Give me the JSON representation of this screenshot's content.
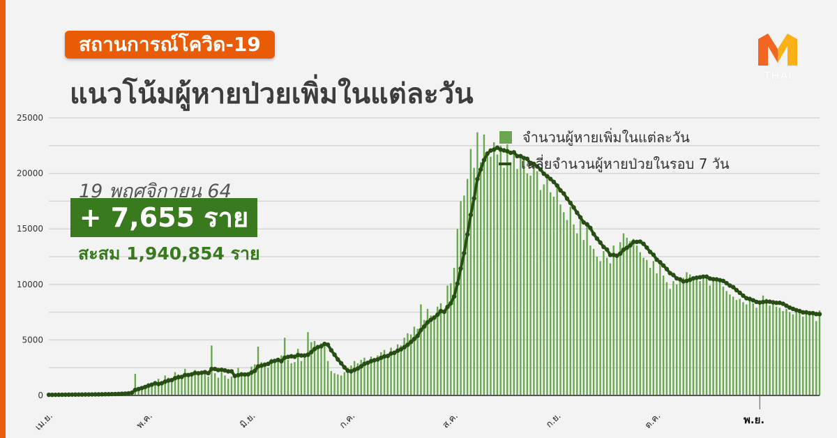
{
  "header": {
    "badge": "สถานการณ์โควิด-19",
    "title": "แนวโน้มผู้หายป่วยเพิ่มในแต่ละวัน"
  },
  "highlight": {
    "date": "19 พฤศจิกายน 64",
    "today": "+ 7,655 ราย",
    "cumulative": "สะสม 1,940,854 ราย"
  },
  "logo": {
    "text": "THAI",
    "letter": "M"
  },
  "colors": {
    "bar": "#6aa84f",
    "line": "#274e13",
    "accent": "#ea5b05",
    "highlight_bg": "#3a7a1f"
  },
  "chart_data": {
    "type": "bar+line",
    "legend": [
      "จำนวนผู้หายเพิ่มในแต่ละวัน",
      "เฉลี่ยจำนวนผู้หายป่วยในรอบ 7 วัน"
    ],
    "legend_position": "top-right",
    "grid": true,
    "ylim": [
      0,
      25000
    ],
    "yticks": [
      "0",
      "5000",
      "10000",
      "15000",
      "20000",
      "25000"
    ],
    "x_start": "1 เม.ย. 64",
    "x_end": "19 พ.ย. 64",
    "month_labels": [
      "เม.ย.",
      "พ.ค.",
      "มิ.ย.",
      "ก.ค.",
      "ส.ค.",
      "ก.ย.",
      "ต.ค.",
      "พ.ย."
    ],
    "month_start_day_index": [
      0,
      30,
      61,
      91,
      122,
      153,
      183,
      214
    ],
    "daily_recovered": [
      60,
      50,
      70,
      80,
      60,
      90,
      80,
      100,
      70,
      90,
      80,
      100,
      90,
      110,
      120,
      100,
      130,
      140,
      120,
      150,
      160,
      180,
      200,
      250,
      300,
      450,
      1950,
      700,
      800,
      900,
      1100,
      900,
      1300,
      1500,
      1200,
      1800,
      1600,
      1400,
      2100,
      1900,
      1700,
      2400,
      1800,
      2000,
      2300,
      1900,
      2200,
      2100,
      1700,
      4500,
      2000,
      1600,
      2100,
      1800,
      1500,
      1700,
      1600,
      2500,
      2100,
      2000,
      1900,
      2600,
      2800,
      4400,
      3000,
      2700,
      2500,
      3300,
      3100,
      3400,
      3600,
      5200,
      3200,
      2900,
      3000,
      4200,
      3100,
      3600,
      5700,
      4800,
      4900,
      4200,
      4700,
      4600,
      3100,
      2200,
      2000,
      1900,
      1800,
      2100,
      2500,
      2700,
      3100,
      2900,
      3200,
      3400,
      2800,
      3500,
      3300,
      3600,
      3900,
      4100,
      3700,
      4300,
      4000,
      4600,
      4500,
      5200,
      5600,
      5500,
      6200,
      6000,
      8200,
      6800,
      7800,
      7200,
      6900,
      8000,
      8300,
      7700,
      9900,
      10100,
      11500,
      15000,
      17500,
      18000,
      19500,
      22200,
      20500,
      23700,
      21000,
      23500,
      22000,
      21500,
      22800,
      21700,
      22500,
      20500,
      23000,
      21000,
      21800,
      20400,
      21700,
      21300,
      20000,
      19800,
      21000,
      20200,
      18500,
      19000,
      19700,
      18300,
      17900,
      18700,
      17200,
      16500,
      15800,
      17000,
      15400,
      14600,
      15800,
      14000,
      15300,
      13500,
      13200,
      12500,
      12100,
      13000,
      12400,
      11900,
      13500,
      12700,
      13800,
      14600,
      14200,
      13900,
      14100,
      13500,
      12900,
      12400,
      12200,
      11500,
      12100,
      11000,
      11900,
      10800,
      10200,
      9600,
      10300,
      10000,
      10400,
      10600,
      11100,
      10900,
      10500,
      10700,
      10300,
      10800,
      10600,
      9900,
      10500,
      10400,
      10200,
      9800,
      9400,
      9100,
      8900,
      8600,
      8700,
      8400,
      8200,
      8900,
      8300,
      7900,
      8200,
      9000,
      8700,
      8100,
      8500,
      8000,
      7900,
      7600,
      7800,
      7500,
      7300,
      7700,
      7400,
      7100,
      7600,
      7300,
      7500,
      6700,
      7655
    ]
  }
}
